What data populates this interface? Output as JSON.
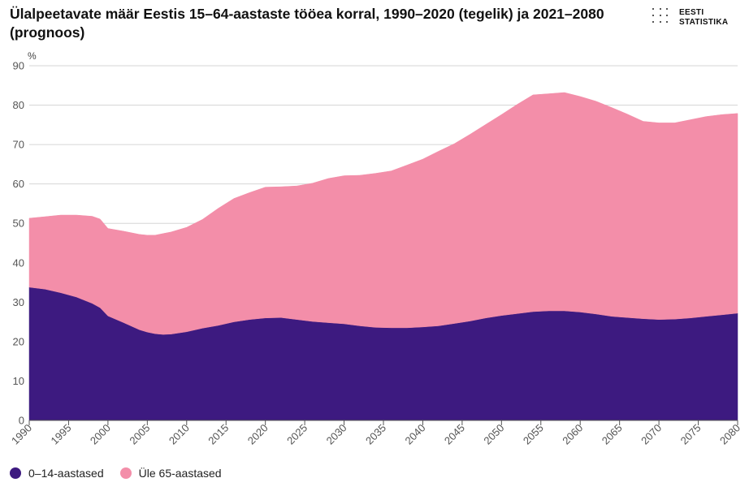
{
  "title": "Ülalpeetavate määr Eestis 15–64-aastaste tööea korral, 1990–2020 (tegelik) ja 2021–2080 (prognoos)",
  "logo": {
    "line1": "EESTI",
    "line2": "STATISTIKA",
    "icon": "dot-grid-logo"
  },
  "chart_data": {
    "type": "area",
    "stacked": true,
    "title": "Ülalpeetavate määr Eestis 15–64-aastaste tööea korral, 1990–2020 (tegelik) ja 2021–2080 (prognoos)",
    "ylabel": "%",
    "xlabel": "",
    "xlim": [
      1990,
      2080
    ],
    "ylim": [
      0,
      90
    ],
    "yticks": [
      "0",
      "10",
      "20",
      "30",
      "40",
      "50",
      "60",
      "70",
      "80",
      "90"
    ],
    "xticks": [
      "1990",
      "1995",
      "2000",
      "2005",
      "2010",
      "2015",
      "2020",
      "2025",
      "2030",
      "2035",
      "2040",
      "2045",
      "2050",
      "2055",
      "2060",
      "2065",
      "2070",
      "2075",
      "2080"
    ],
    "grid": true,
    "legend_position": "bottom-left",
    "x": [
      1990,
      1992,
      1994,
      1996,
      1998,
      1999,
      2000,
      2002,
      2004,
      2005,
      2006,
      2007,
      2008,
      2010,
      2012,
      2014,
      2016,
      2018,
      2020,
      2022,
      2024,
      2026,
      2028,
      2030,
      2032,
      2034,
      2036,
      2038,
      2040,
      2042,
      2044,
      2046,
      2048,
      2050,
      2052,
      2054,
      2056,
      2058,
      2060,
      2062,
      2064,
      2066,
      2068,
      2070,
      2072,
      2074,
      2076,
      2078,
      2080
    ],
    "series": [
      {
        "name": "0–14-aastased",
        "color": "#3d1a80",
        "values": [
          33.8,
          33.3,
          32.4,
          31.3,
          29.7,
          28.6,
          26.5,
          24.8,
          23.0,
          22.4,
          22.0,
          21.8,
          21.9,
          22.5,
          23.4,
          24.1,
          25.0,
          25.6,
          26.0,
          26.1,
          25.6,
          25.1,
          24.8,
          24.5,
          24.0,
          23.6,
          23.5,
          23.5,
          23.7,
          24.0,
          24.6,
          25.2,
          26.0,
          26.6,
          27.1,
          27.6,
          27.8,
          27.8,
          27.5,
          27.0,
          26.4,
          26.1,
          25.8,
          25.6,
          25.7,
          26.0,
          26.4,
          26.8,
          27.2
        ]
      },
      {
        "name": "Üle 65-aastased",
        "color": "#f38ea9",
        "values": [
          17.5,
          18.4,
          19.7,
          20.8,
          22.1,
          22.5,
          22.2,
          23.2,
          24.2,
          24.6,
          25.0,
          25.6,
          25.9,
          26.5,
          27.6,
          29.7,
          31.3,
          32.2,
          33.2,
          33.2,
          33.9,
          35.1,
          36.6,
          37.6,
          38.2,
          39.1,
          39.8,
          41.3,
          42.6,
          44.3,
          45.6,
          47.4,
          49.1,
          51.0,
          53.1,
          55.0,
          55.1,
          55.4,
          54.7,
          54.0,
          53.0,
          51.6,
          50.1,
          49.9,
          49.8,
          50.3,
          50.7,
          50.8,
          50.7
        ]
      }
    ]
  }
}
